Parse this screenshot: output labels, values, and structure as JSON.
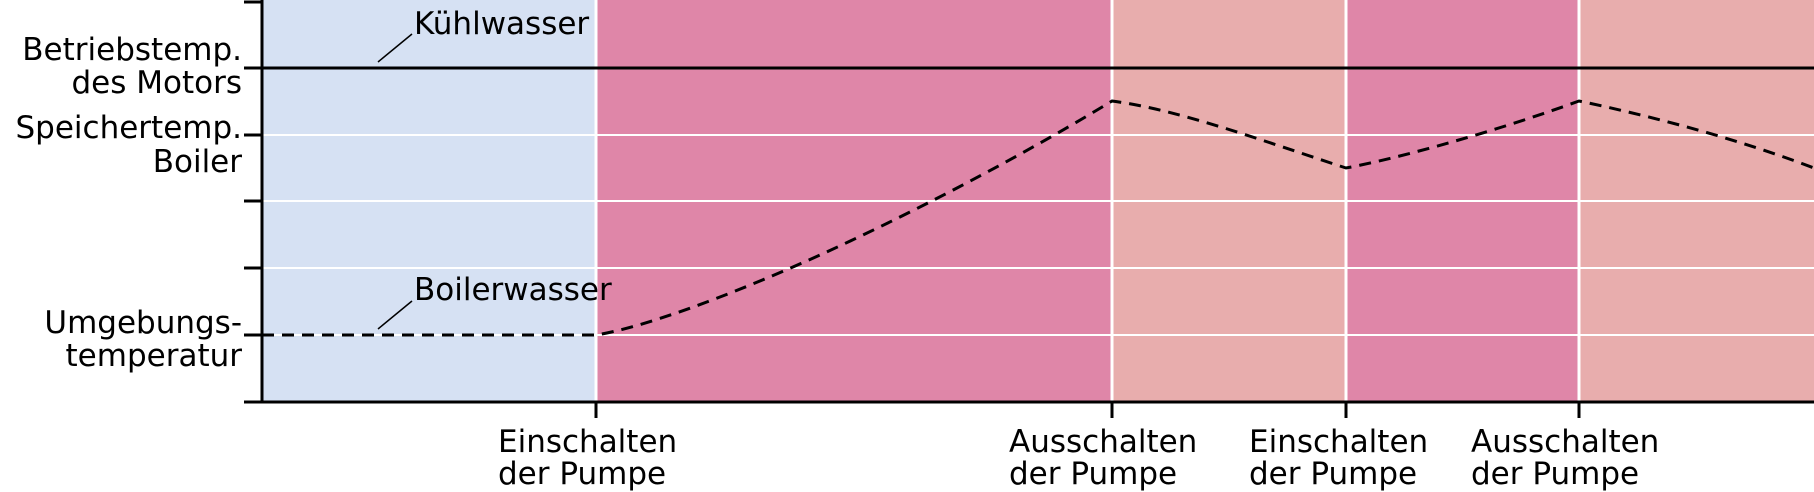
{
  "colors": {
    "cold_phase": "#d6e1f3",
    "pump_on": "#df86a8",
    "pump_off": "#e8adad",
    "axis": "#000000",
    "gridline": "#ffffff"
  },
  "y_labels": {
    "engine_temp": [
      "Betriebstemp.",
      "des Motors"
    ],
    "storage_temp": [
      "Speichertemp.",
      "Boiler"
    ],
    "ambient_temp": [
      "Umgebungs-",
      "temperatur"
    ]
  },
  "annotations": {
    "coolant": "Kühlwasser",
    "boiler_water": "Boilerwasser"
  },
  "events": [
    {
      "line1": "Einschalten",
      "line2": "der Pumpe"
    },
    {
      "line1": "Ausschalten",
      "line2": "der Pumpe"
    },
    {
      "line1": "Einschalten",
      "line2": "der Pumpe"
    },
    {
      "line1": "Ausschalten",
      "line2": "der Pumpe"
    }
  ],
  "phases": [
    {
      "state": "cold",
      "color": "#d6e1f3"
    },
    {
      "state": "pump_on",
      "color": "#df86a8"
    },
    {
      "state": "pump_off",
      "color": "#e8adad"
    },
    {
      "state": "pump_on",
      "color": "#df86a8"
    },
    {
      "state": "pump_off",
      "color": "#e8adad"
    }
  ]
}
